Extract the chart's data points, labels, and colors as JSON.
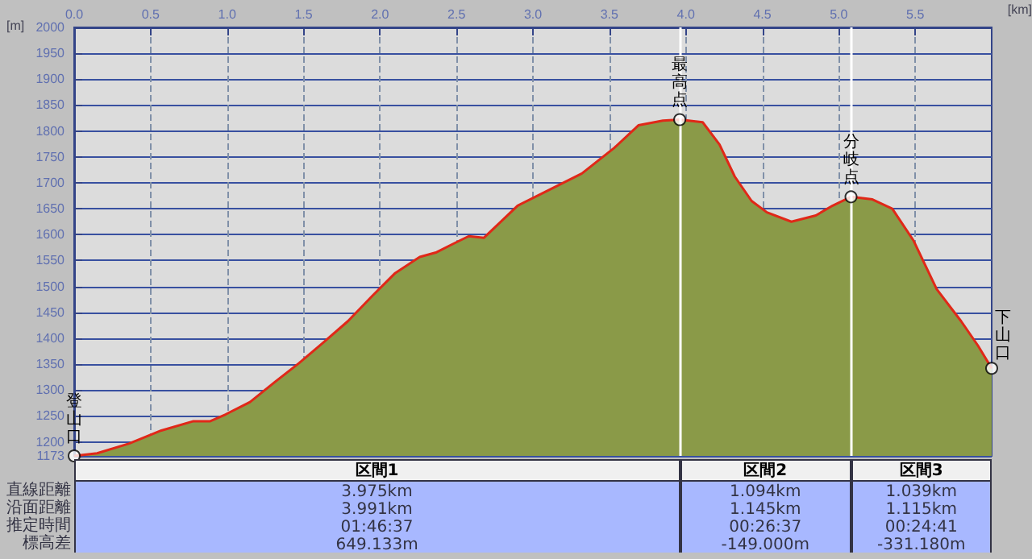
{
  "chart_data": {
    "type": "area",
    "xlabel": "[km]",
    "ylabel": "[m]",
    "x": [
      0,
      0.15,
      0.36,
      0.57,
      0.78,
      0.89,
      0.99,
      1.15,
      1.31,
      1.47,
      1.63,
      1.79,
      1.95,
      2.1,
      2.26,
      2.37,
      2.47,
      2.58,
      2.68,
      2.9,
      3.11,
      3.32,
      3.53,
      3.69,
      3.85,
      3.96,
      4.11,
      4.22,
      4.32,
      4.43,
      4.53,
      4.69,
      4.85,
      4.96,
      5.08,
      5.22,
      5.35,
      5.49,
      5.64,
      5.8,
      5.91,
      6.0
    ],
    "series": [
      {
        "color": "#8a9a48",
        "values": [
          1173,
          1178,
          1197,
          1222,
          1240,
          1240,
          1253,
          1277,
          1315,
          1352,
          1392,
          1433,
          1482,
          1526,
          1557,
          1566,
          1581,
          1597,
          1594,
          1656,
          1687,
          1718,
          1767,
          1811,
          1820,
          1822,
          1817,
          1774,
          1712,
          1665,
          1643,
          1625,
          1637,
          1656,
          1673,
          1668,
          1650,
          1588,
          1495,
          1433,
          1386,
          1342
        ]
      },
      {
        "type": "scatter",
        "color": "#ffffff",
        "marker": "circle",
        "x": [
          0,
          3.96,
          5.08,
          6.0
        ],
        "values": [
          1173,
          1822,
          1673,
          1342
        ]
      }
    ],
    "xlim": [
      0,
      6.0
    ],
    "ylim": [
      1173,
      2000
    ],
    "xticks": [
      {
        "value": 0,
        "label": "0.0"
      },
      {
        "value": 0.5,
        "label": "0.5"
      },
      {
        "value": 1,
        "label": "1.0"
      },
      {
        "value": 1.5,
        "label": "1.5"
      },
      {
        "value": 2,
        "label": "2.0"
      },
      {
        "value": 2.5,
        "label": "2.5"
      },
      {
        "value": 3,
        "label": "3.0"
      },
      {
        "value": 3.5,
        "label": "3.5"
      },
      {
        "value": 4,
        "label": "4.0"
      },
      {
        "value": 4.5,
        "label": "4.5"
      },
      {
        "value": 5,
        "label": "5.0"
      },
      {
        "value": 5.5,
        "label": "5.5"
      }
    ],
    "yticks": [
      1173,
      1200,
      1250,
      1300,
      1350,
      1400,
      1450,
      1500,
      1550,
      1600,
      1650,
      1700,
      1750,
      1800,
      1850,
      1900,
      1950,
      2000
    ],
    "grid": true,
    "ref_lines": [
      {
        "axis": "x",
        "value": 3.96,
        "color": "#ffffff"
      },
      {
        "axis": "x",
        "value": 5.08,
        "color": "#ffffff"
      }
    ],
    "annotations": [
      {
        "text": "登山口",
        "x": 0,
        "y": 1173
      },
      {
        "text": "最高点",
        "x": 3.96,
        "y": 1822
      },
      {
        "text": "分岐点",
        "x": 5.08,
        "y": 1673
      },
      {
        "text": "下山口",
        "x": 6.0,
        "y": 1342
      },
      "区間1",
      "区間2",
      "区間3",
      "直線距離",
      "3.975km",
      "1.094km",
      "1.039km",
      "沿面距離",
      "3.991km",
      "1.145km",
      "1.115km",
      "推定時間",
      "01:46:37",
      "00:26:37",
      "00:24:41",
      "標高差",
      "649.133m",
      "-149.000m",
      "-331.180m"
    ]
  }
}
